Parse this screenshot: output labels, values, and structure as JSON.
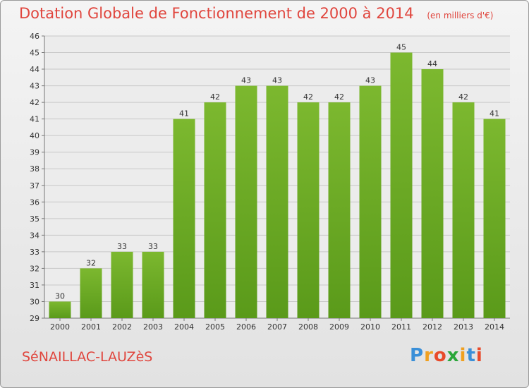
{
  "chart_data": {
    "type": "bar",
    "title": "Dotation Globale de Fonctionnement de 2000 à 2014",
    "subtitle": "(en milliers d'€)",
    "categories": [
      "2000",
      "2001",
      "2002",
      "2003",
      "2004",
      "2005",
      "2006",
      "2007",
      "2008",
      "2009",
      "2010",
      "2011",
      "2012",
      "2013",
      "2014"
    ],
    "values": [
      30,
      32,
      33,
      33,
      41,
      42,
      43,
      43,
      42,
      42,
      43,
      45,
      44,
      42,
      41
    ],
    "ylim": [
      29,
      46
    ],
    "yticks": [
      29,
      30,
      31,
      32,
      33,
      34,
      35,
      36,
      37,
      38,
      39,
      40,
      41,
      42,
      43,
      44,
      45,
      46
    ],
    "grid": true,
    "bar_color": "#7cb82f",
    "bar_color_dark": "#5a9a1a"
  },
  "commune": "SéNAILLAC-LAUZèS",
  "logo": {
    "letters": [
      "P",
      "r",
      "o",
      "x",
      "i",
      "t",
      "i"
    ],
    "colors": [
      "#3a8fd8",
      "#f0a020",
      "#e84a2a",
      "#2aa63a",
      "#f0a020",
      "#3a8fd8",
      "#e84a2a"
    ]
  },
  "colors": {
    "title": "#e0453d",
    "axis_text": "#333333",
    "grid": "#c8c8c8"
  }
}
